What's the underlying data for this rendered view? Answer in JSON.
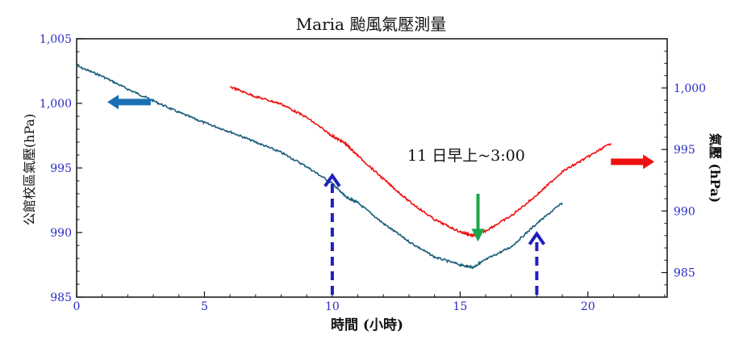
{
  "chart_data": {
    "type": "line",
    "title": "Maria 颱風氣壓測量",
    "xlabel": "時間 (小時)",
    "ylabel_left": "公館校區氣壓(hPa)",
    "ylabel_right": "氣壓 (hPa)",
    "xlim": [
      0,
      23.1
    ],
    "ylim_left": [
      985,
      1005
    ],
    "ylim_right": [
      983,
      1004
    ],
    "x_ticks": [
      "0",
      "5",
      "10",
      "15",
      "20"
    ],
    "x_tick_values": [
      0,
      5,
      10,
      15,
      20
    ],
    "y_left_ticks": [
      "985",
      "990",
      "995",
      "1,000",
      "1,005"
    ],
    "y_left_tick_values": [
      985,
      990,
      995,
      1000,
      1005
    ],
    "y_right_ticks": [
      "985",
      "990",
      "995",
      "1,000"
    ],
    "y_right_tick_values": [
      985,
      990,
      995,
      1000
    ],
    "annotation": "11 日早上~3:00",
    "grid": false,
    "series": [
      {
        "axis": "left",
        "color": "#1a5c7a",
        "x": [
          0,
          1,
          2,
          3,
          4,
          5,
          6,
          7,
          8,
          9,
          10,
          10.5,
          11,
          12,
          13,
          14,
          15,
          15.5,
          16,
          17,
          18,
          19
        ],
        "y": [
          1002.9,
          1002.1,
          1001.1,
          1000.2,
          999.3,
          998.5,
          997.8,
          997.0,
          996.2,
          995.1,
          993.8,
          992.8,
          992.3,
          990.7,
          989.3,
          988.1,
          987.5,
          987.3,
          987.9,
          988.9,
          990.7,
          992.3
        ]
      },
      {
        "axis": "right",
        "color": "#ee1111",
        "x": [
          6,
          7,
          8,
          9,
          10,
          10.5,
          11,
          12,
          13,
          14,
          15,
          15.5,
          16,
          17,
          18,
          19,
          20,
          20.9
        ],
        "y": [
          1000.1,
          999.3,
          998.7,
          997.6,
          996.1,
          995.5,
          994.5,
          992.6,
          990.8,
          989.3,
          988.3,
          988.0,
          988.4,
          989.6,
          991.3,
          993.2,
          994.4,
          995.5
        ]
      }
    ],
    "arrows": [
      {
        "name": "left-axis-arrow",
        "color": "#1a6fb5",
        "points": "left",
        "dashed": false,
        "x": [
          1.2,
          2.9
        ],
        "y_left": 1000.1
      },
      {
        "name": "right-axis-arrow",
        "color": "#ee1111",
        "points": "right",
        "dashed": false,
        "x": [
          20.9,
          22.6
        ],
        "y_right": 994.0
      },
      {
        "name": "dashed-arrow-10h",
        "color": "#1f1fc0",
        "points": "up",
        "dashed": true,
        "x": 10,
        "y_left": [
          985,
          994.4
        ]
      },
      {
        "name": "dashed-arrow-18h",
        "color": "#1f1fc0",
        "points": "up",
        "dashed": true,
        "x": 18,
        "y_left": [
          985,
          989.9
        ]
      },
      {
        "name": "green-arrow-3am",
        "color": "#1aa64a",
        "points": "down",
        "dashed": false,
        "x": 15.7,
        "y_right": [
          991.4,
          987.5
        ]
      }
    ]
  }
}
